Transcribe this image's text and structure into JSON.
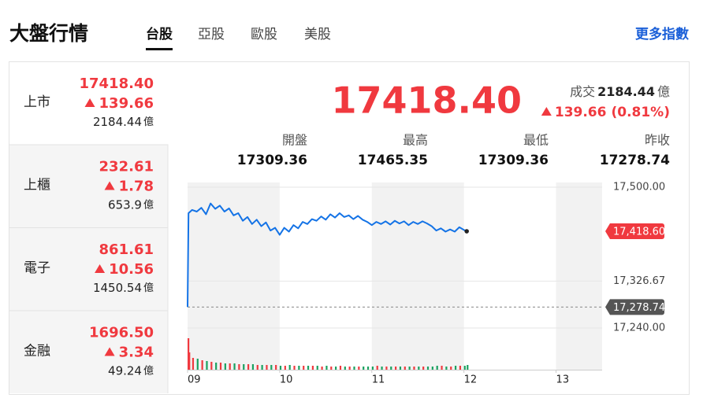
{
  "header": {
    "title": "大盤行情",
    "tabs": [
      "台股",
      "亞股",
      "歐股",
      "美股"
    ],
    "more": "更多指數"
  },
  "markets": [
    {
      "name": "上市",
      "price": "17418.40",
      "change": "139.66",
      "volume": "2184.44",
      "unit": "億"
    },
    {
      "name": "上櫃",
      "price": "232.61",
      "change": "1.78",
      "volume": "653.9",
      "unit": "億"
    },
    {
      "name": "電子",
      "price": "861.61",
      "change": "10.56",
      "volume": "1450.54",
      "unit": "億"
    },
    {
      "name": "金融",
      "price": "1696.50",
      "change": "3.34",
      "volume": "49.24",
      "unit": "億"
    }
  ],
  "quote": {
    "price": "17418.40",
    "volume_label": "成交",
    "volume": "2184.44",
    "unit": "億",
    "change": "139.66",
    "percent": "(0.81%)",
    "stats": [
      {
        "label": "開盤",
        "value": "17309.36"
      },
      {
        "label": "最高",
        "value": "17465.35"
      },
      {
        "label": "最低",
        "value": "17309.36"
      },
      {
        "label": "昨收",
        "value": "17278.74"
      }
    ]
  },
  "chart_data": {
    "type": "line",
    "color": "#1473e6",
    "up_color": "#f0393f",
    "down_color": "#1aa260",
    "x": [
      9.0,
      9.01,
      9.05,
      9.1,
      9.15,
      9.2,
      9.25,
      9.3,
      9.35,
      9.4,
      9.45,
      9.5,
      9.55,
      9.6,
      9.65,
      9.7,
      9.75,
      9.8,
      9.85,
      9.9,
      9.95,
      10.0,
      10.05,
      10.1,
      10.15,
      10.2,
      10.25,
      10.3,
      10.35,
      10.4,
      10.45,
      10.5,
      10.55,
      10.6,
      10.65,
      10.7,
      10.75,
      10.8,
      10.85,
      10.9,
      10.95,
      11.0,
      11.05,
      11.1,
      11.15,
      11.2,
      11.25,
      11.3,
      11.35,
      11.4,
      11.45,
      11.5,
      11.55,
      11.6,
      11.65,
      11.7,
      11.75,
      11.8,
      11.85,
      11.9,
      11.95,
      12.0,
      12.03
    ],
    "values": [
      17278.74,
      17452,
      17458,
      17455,
      17462,
      17450,
      17470,
      17460,
      17466,
      17455,
      17461,
      17448,
      17452,
      17438,
      17445,
      17432,
      17440,
      17428,
      17435,
      17420,
      17425,
      17412,
      17425,
      17418,
      17430,
      17424,
      17436,
      17432,
      17441,
      17438,
      17446,
      17440,
      17450,
      17444,
      17452,
      17445,
      17448,
      17441,
      17447,
      17440,
      17436,
      17430,
      17436,
      17432,
      17437,
      17431,
      17438,
      17433,
      17437,
      17430,
      17436,
      17432,
      17437,
      17433,
      17428,
      17420,
      17424,
      17418,
      17422,
      17418,
      17426,
      17421,
      17418.6
    ],
    "volumes": [
      40,
      22,
      15,
      14,
      12,
      11,
      10,
      9,
      9,
      8,
      8,
      8,
      7,
      7,
      7,
      7,
      6,
      6,
      6,
      6,
      6,
      5,
      5,
      6,
      5,
      5,
      5,
      5,
      5,
      5,
      4,
      5,
      4,
      4,
      5,
      4,
      4,
      4,
      4,
      4,
      4,
      4,
      5,
      4,
      4,
      4,
      4,
      4,
      4,
      4,
      4,
      4,
      4,
      4,
      4,
      5,
      5,
      4,
      4,
      5,
      5,
      5,
      6
    ],
    "vlim": [
      0,
      40
    ],
    "xlim": [
      9,
      13.5
    ],
    "xticks": [
      {
        "value": 9,
        "label": "09"
      },
      {
        "value": 10,
        "label": "10"
      },
      {
        "value": 11,
        "label": "11"
      },
      {
        "value": 12,
        "label": "12"
      },
      {
        "value": 13,
        "label": "13"
      }
    ],
    "ylim": [
      17240,
      17500
    ],
    "yticks": [
      {
        "value": 17500,
        "label": "17,500.00"
      },
      {
        "value": 17326.67,
        "label": "17,326.67"
      },
      {
        "value": 17240,
        "label": "17,240.00"
      }
    ],
    "reference": {
      "value": 17278.74,
      "label": "17,278.74"
    },
    "last": {
      "value": 17418.6,
      "label": "17,418.60"
    }
  }
}
